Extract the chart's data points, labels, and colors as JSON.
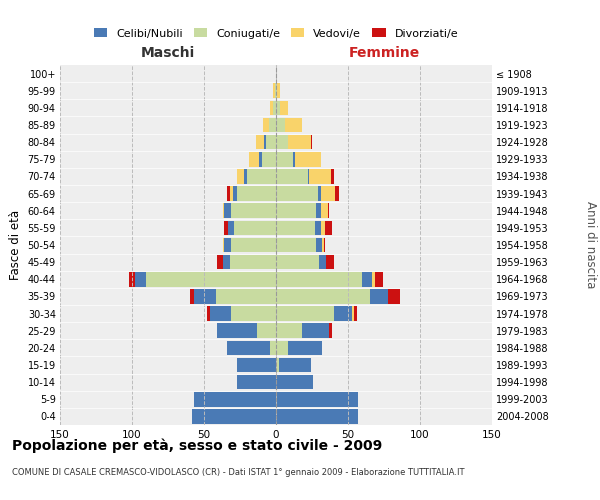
{
  "age_groups": [
    "0-4",
    "5-9",
    "10-14",
    "15-19",
    "20-24",
    "25-29",
    "30-34",
    "35-39",
    "40-44",
    "45-49",
    "50-54",
    "55-59",
    "60-64",
    "65-69",
    "70-74",
    "75-79",
    "80-84",
    "85-89",
    "90-94",
    "95-99",
    "100+"
  ],
  "birth_years": [
    "2004-2008",
    "1999-2003",
    "1994-1998",
    "1989-1993",
    "1984-1988",
    "1979-1983",
    "1974-1978",
    "1969-1973",
    "1964-1968",
    "1959-1963",
    "1954-1958",
    "1949-1953",
    "1944-1948",
    "1939-1943",
    "1934-1938",
    "1929-1933",
    "1924-1928",
    "1919-1923",
    "1914-1918",
    "1909-1913",
    "≤ 1908"
  ],
  "colors": {
    "celibi": "#4a7ab5",
    "coniugati": "#c8dba0",
    "vedovi": "#f9d36a",
    "divorziati": "#cc1111"
  },
  "males": {
    "celibi": [
      58,
      57,
      27,
      27,
      30,
      28,
      15,
      15,
      8,
      5,
      5,
      4,
      5,
      3,
      2,
      2,
      1,
      0,
      0,
      0,
      0
    ],
    "coniugati": [
      0,
      0,
      0,
      0,
      4,
      13,
      31,
      42,
      90,
      32,
      31,
      29,
      31,
      27,
      20,
      10,
      7,
      5,
      2,
      1,
      0
    ],
    "vedovi": [
      0,
      0,
      0,
      0,
      0,
      0,
      0,
      0,
      0,
      0,
      1,
      0,
      1,
      2,
      5,
      7,
      6,
      4,
      2,
      1,
      0
    ],
    "divorziati": [
      0,
      0,
      0,
      0,
      0,
      0,
      2,
      3,
      4,
      4,
      0,
      3,
      0,
      2,
      0,
      0,
      0,
      0,
      0,
      0,
      0
    ]
  },
  "females": {
    "celibi": [
      57,
      57,
      26,
      22,
      24,
      19,
      13,
      13,
      7,
      5,
      4,
      4,
      3,
      2,
      1,
      1,
      0,
      0,
      0,
      0,
      0
    ],
    "coniugati": [
      0,
      0,
      0,
      2,
      8,
      18,
      40,
      65,
      60,
      30,
      28,
      27,
      28,
      29,
      22,
      12,
      8,
      6,
      3,
      1,
      0
    ],
    "vedovi": [
      0,
      0,
      0,
      0,
      0,
      0,
      1,
      0,
      2,
      0,
      1,
      3,
      5,
      10,
      15,
      18,
      16,
      12,
      5,
      2,
      0
    ],
    "divorziati": [
      0,
      0,
      0,
      0,
      0,
      2,
      2,
      8,
      5,
      5,
      1,
      5,
      1,
      3,
      2,
      0,
      1,
      0,
      0,
      0,
      0
    ]
  },
  "title": "Popolazione per età, sesso e stato civile - 2009",
  "subtitle": "COMUNE DI CASALE CREMASCO-VIDOLASCO (CR) - Dati ISTAT 1° gennaio 2009 - Elaborazione TUTTITALIA.IT",
  "xlabel_left": "Maschi",
  "xlabel_right": "Femmine",
  "ylabel_left": "Fasce di età",
  "ylabel_right": "Anni di nascita",
  "legend_labels": [
    "Celibi/Nubili",
    "Coniugati/e",
    "Vedovi/e",
    "Divorziati/e"
  ],
  "xlim": 150,
  "bg_color": "#ffffff",
  "plot_bg": "#eeeeee",
  "grid_color": "#bbbbbb"
}
